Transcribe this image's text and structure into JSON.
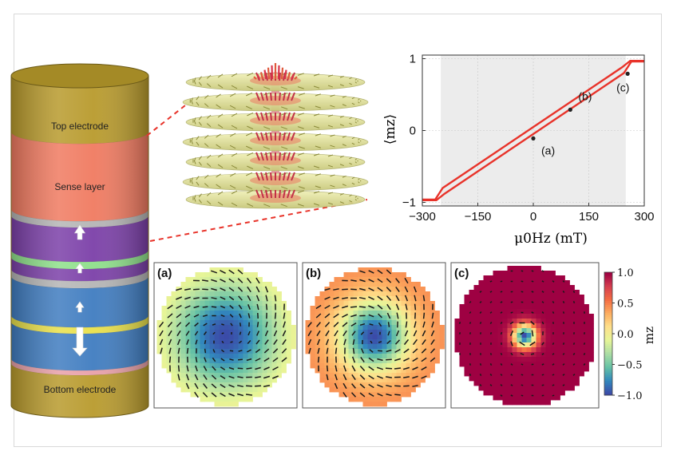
{
  "stack": {
    "top_electrode": "Top electrode",
    "sense_layer": "Sense layer",
    "bottom_electrode": "Bottom electrode",
    "colors": {
      "electrode": "#b89a2c",
      "sense": "#f07a60",
      "spacer": "#b5b5b5",
      "purple": "#7b3fa8",
      "green": "#8ee08a",
      "blue": "#3f7cc0",
      "yellow": "#e9e04a",
      "pink": "#e8a0a8"
    }
  },
  "chart_data": {
    "type": "line",
    "xlabel": "μ0Hz (mT)",
    "ylabel": "⟨mz⟩",
    "xlim": [
      -300,
      300
    ],
    "ylim": [
      -1.05,
      1.05
    ],
    "xticks": [
      -300,
      -150,
      0,
      150,
      300
    ],
    "xtick_labels": [
      "−300",
      "−150",
      "0",
      "150",
      "300"
    ],
    "yticks": [
      -1,
      0,
      1
    ],
    "ytick_labels": [
      "−1",
      "0",
      "1"
    ],
    "shaded_region": [
      -250,
      250
    ],
    "series": [
      {
        "x": [
          -300,
          -265,
          -245,
          240,
          262,
          300
        ],
        "y": [
          -0.96,
          -0.96,
          -0.8,
          0.88,
          0.97,
          0.97
        ]
      },
      {
        "x": [
          -300,
          -262,
          -240,
          245,
          265,
          300
        ],
        "y": [
          -0.97,
          -0.97,
          -0.88,
          0.8,
          0.96,
          0.96
        ]
      }
    ],
    "markers": [
      {
        "label": "(a)",
        "x": 0,
        "y": -0.11
      },
      {
        "label": "(b)",
        "x": 100,
        "y": 0.29
      },
      {
        "label": "(c)",
        "x": 255,
        "y": 0.79
      }
    ],
    "line_color": "#e8332a"
  },
  "maps": {
    "panels": [
      {
        "label": "(a)",
        "center_mz": -1.0,
        "edge_mz": 0.1
      },
      {
        "label": "(b)",
        "center_mz": -1.0,
        "edge_mz": 0.45
      },
      {
        "label": "(c)",
        "center_mz": -1.0,
        "edge_mz": 1.0
      }
    ],
    "colorbar": {
      "label": "mz",
      "ticks": [
        "1.0",
        "0.5",
        "0.0",
        "−0.5",
        "−1.0"
      ],
      "stops": [
        "#9e0142",
        "#d53e4f",
        "#f46d43",
        "#fdae61",
        "#fee08b",
        "#e6f598",
        "#abdda4",
        "#66c2a5",
        "#3288bd",
        "#3b4ba8"
      ]
    }
  }
}
